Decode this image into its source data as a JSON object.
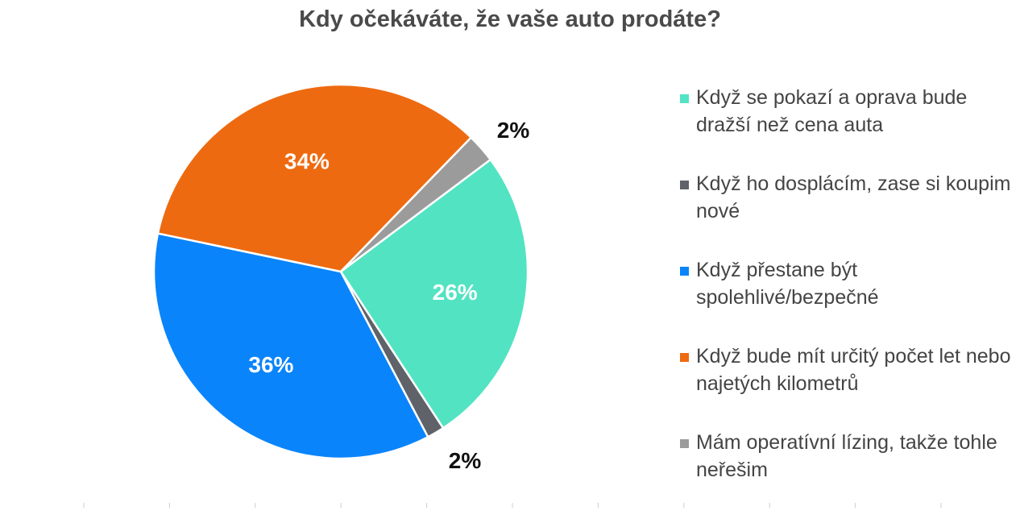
{
  "chart_data": {
    "type": "pie",
    "title": "Kdy očekáváte, že vaše auto prodáte?",
    "legend_position": "right",
    "slices": [
      {
        "label": "Když se pokazí a oprava bude dražší než cena auta",
        "value": 26,
        "data_label": "26%",
        "color": "#52E3C2",
        "label_inside": true
      },
      {
        "label": "Když ho dosplácím, zase si koupim nové",
        "value": 1.5,
        "data_label": "2%",
        "color": "#5F6369",
        "label_inside": false
      },
      {
        "label": "Když přestane být spolehlivé/bezpečné",
        "value": 36,
        "data_label": "36%",
        "color": "#0A84FA",
        "label_inside": true
      },
      {
        "label": "Když bude mít určitý počet let nebo najetých kilometrů",
        "value": 34,
        "data_label": "34%",
        "color": "#EE6A10",
        "label_inside": true
      },
      {
        "label": "Mám operatívní lízing, takže tohle neřešim",
        "value": 2.5,
        "data_label": "2%",
        "color": "#9B9B9B",
        "label_inside": false
      }
    ]
  }
}
